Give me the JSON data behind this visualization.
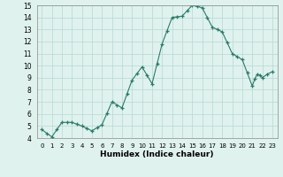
{
  "title": "",
  "xlabel": "Humidex (Indice chaleur)",
  "ylabel": "",
  "xlim": [
    -0.5,
    23.5
  ],
  "ylim": [
    4,
    15
  ],
  "yticks": [
    4,
    5,
    6,
    7,
    8,
    9,
    10,
    11,
    12,
    13,
    14,
    15
  ],
  "xticks": [
    0,
    1,
    2,
    3,
    4,
    5,
    6,
    7,
    8,
    9,
    10,
    11,
    12,
    13,
    14,
    15,
    16,
    17,
    18,
    19,
    20,
    21,
    22,
    23
  ],
  "line_color": "#2d7a6a",
  "marker": "+",
  "bg_color": "#dff2ee",
  "grid_color": "#b8d8d2",
  "x": [
    0,
    0.5,
    1,
    1.5,
    2,
    2.5,
    3,
    3.5,
    4,
    4.5,
    5,
    5.5,
    6,
    6.5,
    7,
    7.5,
    8,
    8.5,
    9,
    9.5,
    10,
    10.5,
    11,
    11.5,
    12,
    12.5,
    13,
    13.5,
    14,
    14.5,
    15,
    15.5,
    16,
    16.5,
    17,
    17.5,
    18,
    18.5,
    19,
    19.5,
    20,
    20.5,
    21,
    21.25,
    21.5,
    21.75,
    22,
    22.5,
    23
  ],
  "y": [
    4.7,
    4.4,
    4.1,
    4.7,
    5.3,
    5.3,
    5.3,
    5.15,
    5.0,
    4.8,
    4.6,
    4.85,
    5.1,
    6.05,
    7.0,
    6.75,
    6.5,
    7.65,
    8.8,
    9.35,
    9.9,
    9.2,
    8.5,
    10.15,
    11.8,
    12.9,
    14.0,
    14.05,
    14.1,
    14.55,
    15.0,
    14.9,
    14.8,
    14.0,
    13.2,
    13.0,
    12.8,
    11.9,
    11.0,
    10.75,
    10.5,
    9.4,
    8.3,
    8.9,
    9.3,
    9.2,
    9.0,
    9.3,
    9.5
  ]
}
